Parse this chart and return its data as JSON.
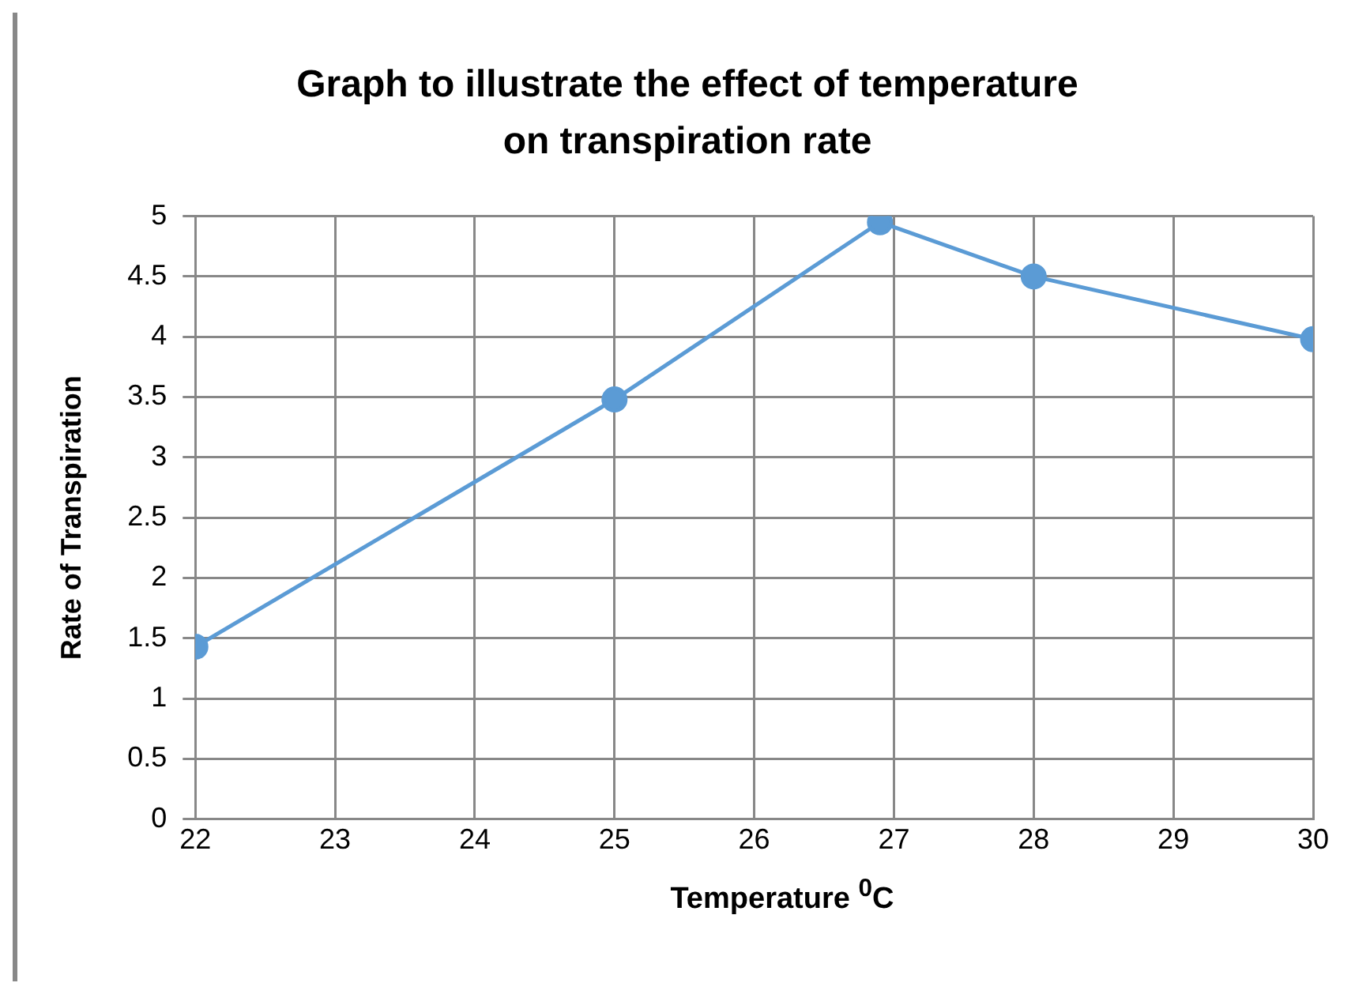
{
  "chart_data": {
    "type": "line",
    "title": "Graph to illustrate the effect of temperature on transpiration rate",
    "xlabel": "Temperature $^{0}$C",
    "ylabel": "Rate of Transpiration",
    "x": [
      22,
      25,
      26.9,
      28,
      30
    ],
    "series": [
      {
        "color": "#5b9bd5",
        "values": [
          1.43,
          3.48,
          4.95,
          4.5,
          3.98
        ]
      }
    ],
    "xlim": [
      22,
      30
    ],
    "xticks": [
      22,
      23,
      24,
      25,
      26,
      27,
      28,
      29,
      30
    ],
    "ylim": [
      0,
      5
    ],
    "yticks": [
      0,
      0.5,
      1,
      1.5,
      2,
      2.5,
      3,
      3.5,
      4,
      4.5,
      5
    ],
    "grid": true,
    "legend": false,
    "marker": "circle",
    "line_style": "solid"
  }
}
